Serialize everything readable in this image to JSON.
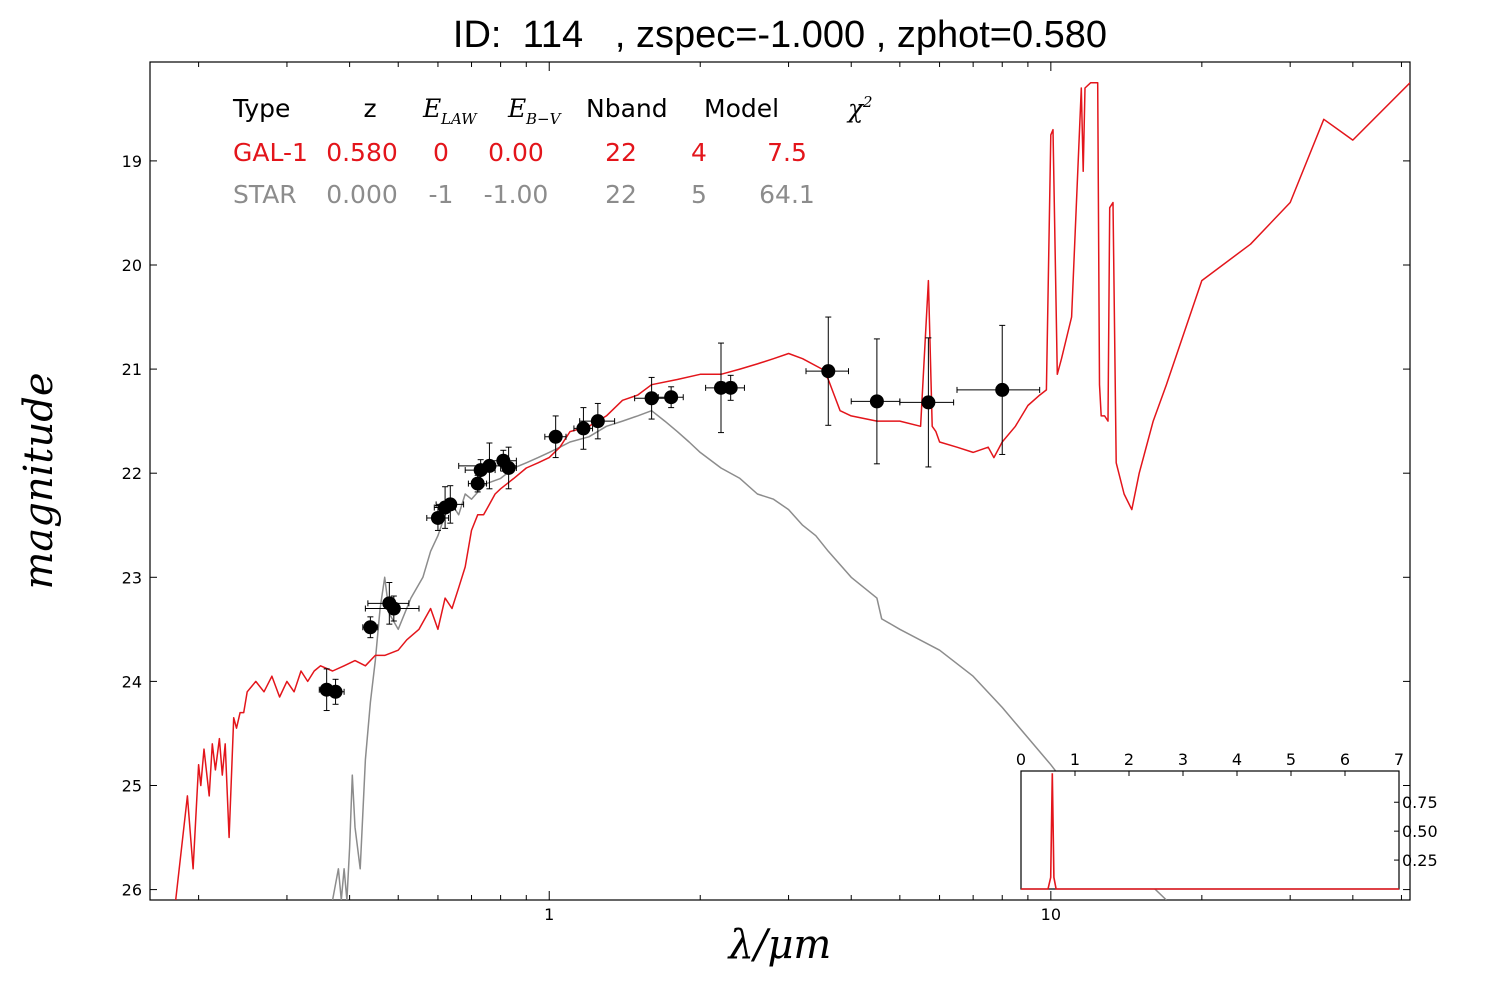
{
  "title": "ID:  114   , zspec=-1.000 , zphot=0.580",
  "colors": {
    "galaxy": "#e3151b",
    "star": "#8c8c8c",
    "points": "#000000"
  },
  "legend": {
    "headers": [
      "Type",
      "z",
      "E",
      "LAW",
      "E",
      "B−V",
      "Nband",
      "Model",
      "χ",
      "2"
    ],
    "rows": [
      {
        "name": "galaxy",
        "cells": [
          "GAL-1",
          "0.580",
          "0",
          "0.00",
          "22",
          "4",
          "7.5"
        ]
      },
      {
        "name": "star",
        "cells": [
          "STAR",
          "0.000",
          "-1",
          "-1.00",
          "22",
          "5",
          "64.1"
        ]
      }
    ]
  },
  "chart_data": [
    {
      "type": "scatter",
      "title": "ID:  114   , zspec=-1.000 , zphot=0.580",
      "xlabel": "λ/μm",
      "ylabel": "magnitude",
      "xscale": "log",
      "xlim": [
        0.16,
        52
      ],
      "ylim": [
        26.1,
        18.05
      ],
      "xticks": [
        1,
        10
      ],
      "xtick_labels": [
        "1",
        "10"
      ],
      "yticks": [
        19,
        20,
        21,
        22,
        23,
        24,
        25,
        26
      ],
      "ytick_labels": [
        "19",
        "20",
        "21",
        "22",
        "23",
        "24",
        "25",
        "26"
      ],
      "grid": false,
      "series": [
        {
          "name": "GAL-1",
          "kind": "line",
          "color": "#e3151b",
          "x": [
            0.18,
            0.19,
            0.195,
            0.2,
            0.202,
            0.205,
            0.21,
            0.213,
            0.216,
            0.22,
            0.223,
            0.226,
            0.23,
            0.235,
            0.238,
            0.242,
            0.246,
            0.25,
            0.255,
            0.26,
            0.27,
            0.28,
            0.29,
            0.3,
            0.31,
            0.32,
            0.33,
            0.34,
            0.35,
            0.37,
            0.39,
            0.41,
            0.43,
            0.45,
            0.47,
            0.5,
            0.52,
            0.55,
            0.58,
            0.6,
            0.62,
            0.64,
            0.66,
            0.68,
            0.7,
            0.72,
            0.74,
            0.76,
            0.78,
            0.8,
            0.85,
            0.9,
            0.95,
            1.0,
            1.05,
            1.1,
            1.2,
            1.3,
            1.4,
            1.5,
            1.6,
            1.8,
            2.0,
            2.2,
            2.4,
            2.6,
            2.8,
            3.0,
            3.2,
            3.5,
            3.6,
            3.7,
            3.8,
            4.0,
            4.5,
            5.0,
            5.5,
            5.7,
            5.8,
            5.9,
            6.0,
            6.5,
            7.0,
            7.5,
            7.7,
            8.0,
            8.5,
            9.0,
            9.5,
            9.8,
            10.0,
            10.1,
            10.3,
            10.5,
            11.0,
            11.5,
            11.6,
            11.7,
            12.0,
            12.4,
            12.5,
            12.6,
            12.8,
            13.0,
            13.1,
            13.3,
            13.5,
            14.0,
            14.5,
            15.0,
            16.0,
            17.0,
            20.0,
            25.0,
            30.0,
            35.0,
            40.0,
            52.0
          ],
          "y": [
            26.1,
            25.1,
            25.8,
            24.8,
            25.0,
            24.65,
            25.1,
            24.6,
            24.85,
            24.55,
            24.9,
            24.6,
            25.5,
            24.35,
            24.45,
            24.3,
            24.3,
            24.1,
            24.05,
            24.0,
            24.1,
            23.95,
            24.15,
            24.0,
            24.1,
            23.9,
            24.0,
            23.9,
            23.85,
            23.9,
            23.85,
            23.8,
            23.85,
            23.75,
            23.75,
            23.7,
            23.6,
            23.5,
            23.3,
            23.5,
            23.2,
            23.3,
            23.1,
            22.9,
            22.55,
            22.4,
            22.4,
            22.3,
            22.2,
            22.15,
            22.05,
            21.95,
            21.9,
            21.85,
            21.75,
            21.6,
            21.55,
            21.45,
            21.3,
            21.25,
            21.15,
            21.1,
            21.05,
            21.05,
            21.0,
            20.95,
            20.9,
            20.85,
            20.9,
            21.0,
            21.1,
            21.25,
            21.4,
            21.45,
            21.5,
            21.5,
            21.55,
            20.15,
            21.55,
            21.6,
            21.7,
            21.75,
            21.8,
            21.75,
            21.85,
            21.7,
            21.55,
            21.35,
            21.25,
            21.2,
            18.75,
            18.7,
            21.05,
            20.9,
            20.5,
            18.3,
            19.1,
            18.3,
            18.25,
            18.25,
            21.15,
            21.45,
            21.45,
            21.5,
            19.45,
            19.4,
            21.9,
            22.2,
            22.35,
            22.0,
            21.5,
            21.15,
            20.15,
            19.8,
            19.4,
            18.6,
            18.8,
            18.25
          ]
        },
        {
          "name": "STAR",
          "kind": "line",
          "color": "#8c8c8c",
          "x": [
            0.37,
            0.38,
            0.385,
            0.39,
            0.395,
            0.4,
            0.405,
            0.41,
            0.42,
            0.43,
            0.44,
            0.45,
            0.46,
            0.47,
            0.48,
            0.5,
            0.53,
            0.56,
            0.58,
            0.6,
            0.62,
            0.64,
            0.66,
            0.68,
            0.7,
            0.73,
            0.75,
            0.8,
            0.85,
            0.9,
            0.95,
            1.0,
            1.05,
            1.1,
            1.2,
            1.3,
            1.4,
            1.5,
            1.6,
            1.7,
            1.8,
            1.9,
            2.0,
            2.2,
            2.4,
            2.6,
            2.8,
            3.0,
            3.2,
            3.4,
            3.6,
            4.0,
            4.5,
            4.6,
            4.8,
            5.0,
            6.0,
            7.0,
            8.0,
            10.0,
            12.0,
            15.0,
            17.0
          ],
          "y": [
            26.1,
            25.8,
            26.1,
            25.8,
            26.1,
            25.6,
            24.9,
            25.4,
            25.8,
            24.75,
            24.2,
            23.8,
            23.3,
            23.0,
            23.35,
            23.5,
            23.2,
            23.0,
            22.75,
            22.6,
            22.4,
            22.3,
            22.4,
            22.2,
            22.25,
            22.15,
            22.1,
            22.05,
            21.95,
            21.9,
            21.85,
            21.8,
            21.75,
            21.7,
            21.65,
            21.55,
            21.5,
            21.45,
            21.4,
            21.5,
            21.6,
            21.7,
            21.8,
            21.95,
            22.05,
            22.2,
            22.25,
            22.35,
            22.5,
            22.6,
            22.75,
            23.0,
            23.2,
            23.4,
            23.45,
            23.5,
            23.7,
            23.95,
            24.25,
            24.8,
            25.3,
            25.85,
            26.1
          ]
        },
        {
          "name": "observed photometry",
          "kind": "errorbar",
          "color": "#000000",
          "points": [
            {
              "x": 0.36,
              "y": 24.08,
              "xerr": 0.012,
              "yerr": 0.2
            },
            {
              "x": 0.375,
              "y": 24.1,
              "xerr": 0.015,
              "yerr": 0.12
            },
            {
              "x": 0.44,
              "y": 23.48,
              "xerr": 0.015,
              "yerr": 0.1
            },
            {
              "x": 0.48,
              "y": 23.25,
              "xerr": 0.045,
              "yerr": 0.2
            },
            {
              "x": 0.49,
              "y": 23.3,
              "xerr": 0.06,
              "yerr": 0.12
            },
            {
              "x": 0.6,
              "y": 22.43,
              "xerr": 0.03,
              "yerr": 0.12
            },
            {
              "x": 0.62,
              "y": 22.33,
              "xerr": 0.03,
              "yerr": 0.2
            },
            {
              "x": 0.635,
              "y": 22.3,
              "xerr": 0.04,
              "yerr": 0.18
            },
            {
              "x": 0.72,
              "y": 22.1,
              "xerr": 0.03,
              "yerr": 0.08
            },
            {
              "x": 0.73,
              "y": 21.97,
              "xerr": 0.05,
              "yerr": 0.1
            },
            {
              "x": 0.76,
              "y": 21.93,
              "xerr": 0.1,
              "yerr": 0.22
            },
            {
              "x": 0.81,
              "y": 21.88,
              "xerr": 0.05,
              "yerr": 0.1
            },
            {
              "x": 0.83,
              "y": 21.95,
              "xerr": 0.03,
              "yerr": 0.2
            },
            {
              "x": 1.03,
              "y": 21.65,
              "xerr": 0.05,
              "yerr": 0.2
            },
            {
              "x": 1.17,
              "y": 21.57,
              "xerr": 0.05,
              "yerr": 0.2
            },
            {
              "x": 1.25,
              "y": 21.5,
              "xerr": 0.1,
              "yerr": 0.17
            },
            {
              "x": 1.6,
              "y": 21.28,
              "xerr": 0.12,
              "yerr": 0.2
            },
            {
              "x": 1.75,
              "y": 21.27,
              "xerr": 0.1,
              "yerr": 0.1
            },
            {
              "x": 2.2,
              "y": 21.18,
              "xerr": 0.15,
              "yerr": 0.43
            },
            {
              "x": 2.3,
              "y": 21.18,
              "xerr": 0.15,
              "yerr": 0.12
            },
            {
              "x": 3.6,
              "y": 21.02,
              "xerr": 0.35,
              "yerr": 0.52
            },
            {
              "x": 4.5,
              "y": 21.31,
              "xerr": 0.5,
              "yerr": 0.6
            },
            {
              "x": 5.7,
              "y": 21.32,
              "xerr": 0.7,
              "yerr": 0.62
            },
            {
              "x": 8.0,
              "y": 21.2,
              "xerr": 1.5,
              "yerr": 0.62
            }
          ]
        }
      ]
    },
    {
      "type": "line",
      "description": "inset redshift probability distribution",
      "xlim": [
        0,
        7
      ],
      "ylim": [
        0,
        1.02
      ],
      "xticks": [
        0,
        1,
        2,
        3,
        4,
        5,
        6,
        7
      ],
      "xtick_labels": [
        "0",
        "1",
        "2",
        "3",
        "4",
        "5",
        "6",
        "7"
      ],
      "yticks": [
        0.25,
        0.5,
        0.75
      ],
      "ytick_labels": [
        "0.25",
        "0.50",
        "0.75"
      ],
      "series": [
        {
          "name": "PDF",
          "color": "#e3151b",
          "x": [
            0,
            0.5,
            0.55,
            0.58,
            0.61,
            0.65,
            7
          ],
          "y": [
            0,
            0,
            0.1,
            1.0,
            0.1,
            0,
            0
          ]
        }
      ]
    }
  ]
}
